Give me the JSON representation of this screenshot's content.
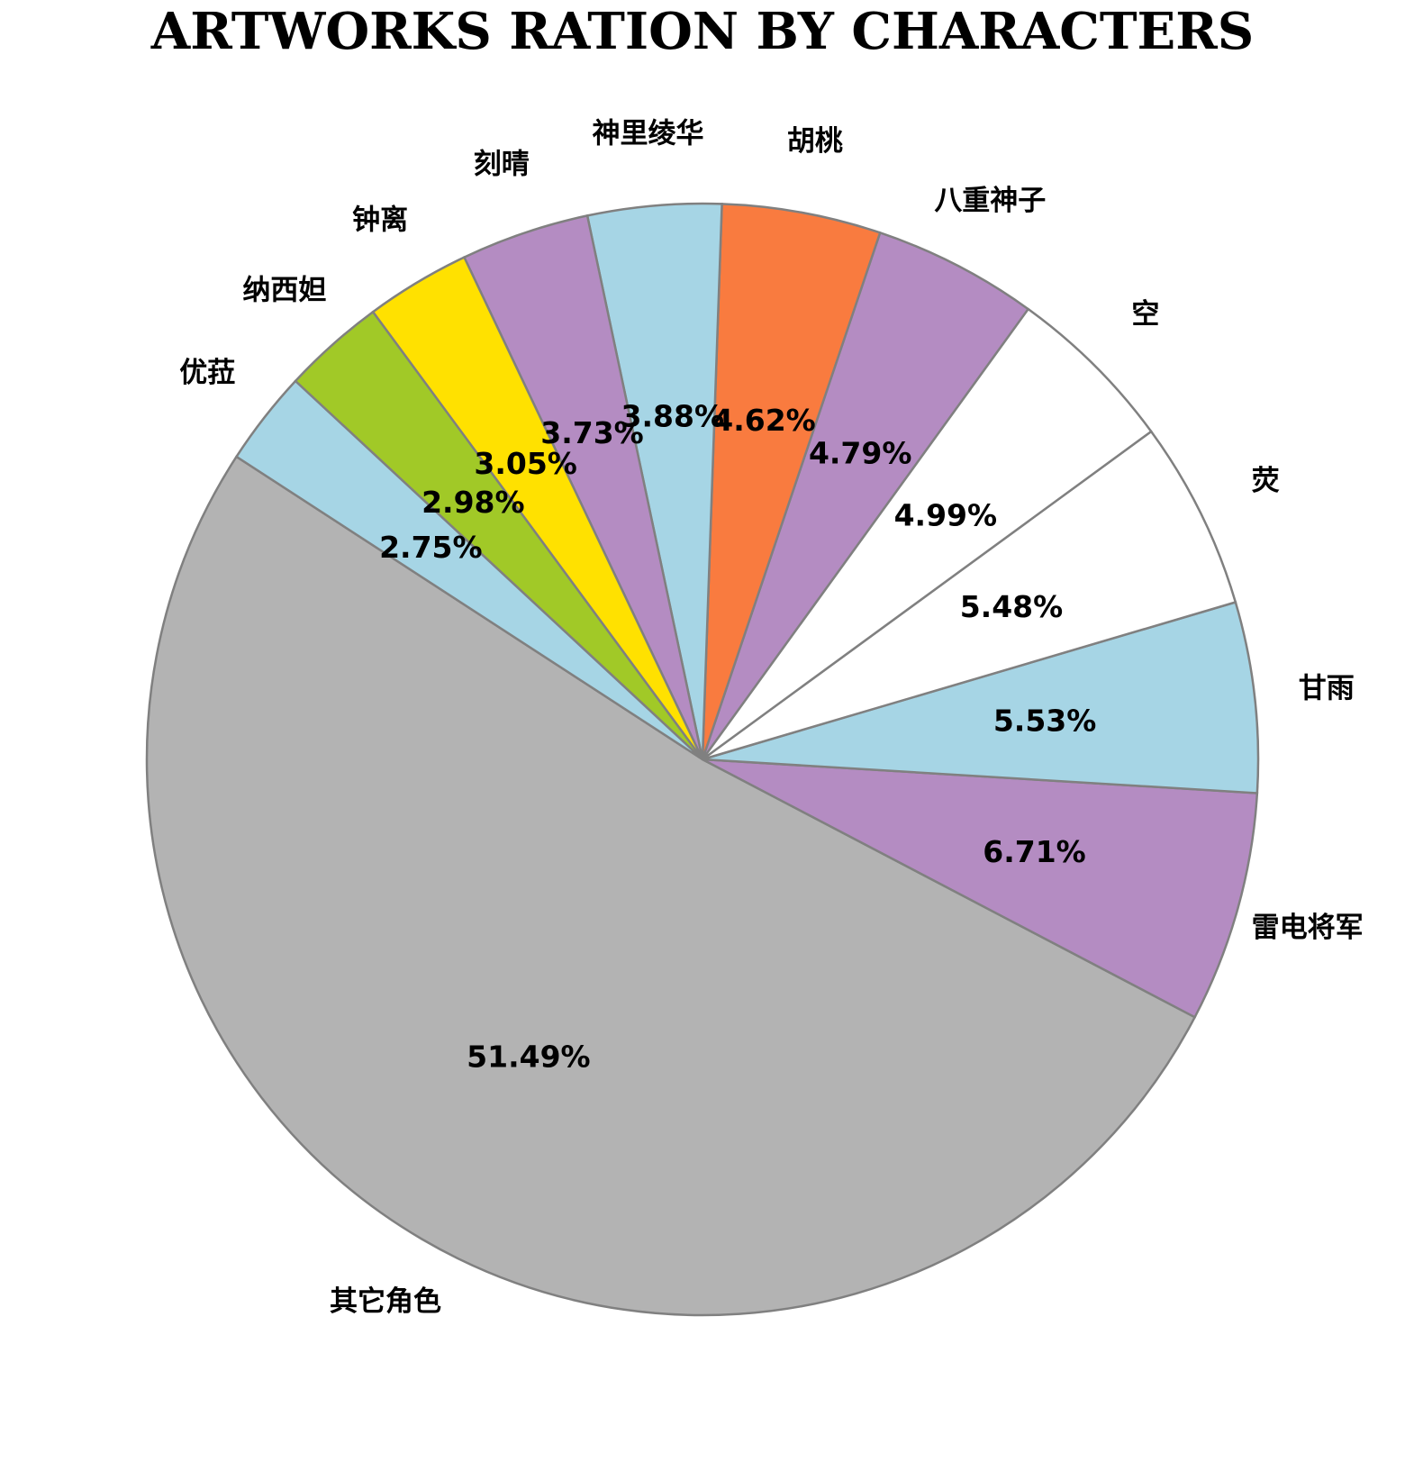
{
  "chart_data": {
    "type": "pie",
    "title": "ARTWORKS RATION BY CHARACTERS",
    "slices": [
      {
        "label": "其它角色",
        "value": 51.49,
        "pct_label": "51.49%",
        "color": "#b3b3b3"
      },
      {
        "label": "雷电将军",
        "value": 6.71,
        "pct_label": "6.71%",
        "color": "#b48cc2"
      },
      {
        "label": "甘雨",
        "value": 5.53,
        "pct_label": "5.53%",
        "color": "#a6d5e5"
      },
      {
        "label": "荧",
        "value": 5.48,
        "pct_label": "5.48%",
        "color": "#ffffff"
      },
      {
        "label": "空",
        "value": 4.99,
        "pct_label": "4.99%",
        "color": "#ffffff"
      },
      {
        "label": "八重神子",
        "value": 4.79,
        "pct_label": "4.79%",
        "color": "#b48cc2"
      },
      {
        "label": "胡桃",
        "value": 4.62,
        "pct_label": "4.62%",
        "color": "#f97b3f"
      },
      {
        "label": "神里绫华",
        "value": 3.88,
        "pct_label": "3.88%",
        "color": "#a6d5e5"
      },
      {
        "label": "刻晴",
        "value": 3.73,
        "pct_label": "3.73%",
        "color": "#b48cc2"
      },
      {
        "label": "钟离",
        "value": 3.05,
        "pct_label": "3.05%",
        "color": "#ffe100"
      },
      {
        "label": "纳西妲",
        "value": 2.98,
        "pct_label": "2.98%",
        "color": "#a1c927"
      },
      {
        "label": "优菈",
        "value": 2.75,
        "pct_label": "2.75%",
        "color": "#a6d5e5"
      }
    ],
    "slice_edge_color": "#808080",
    "legend": "none"
  }
}
